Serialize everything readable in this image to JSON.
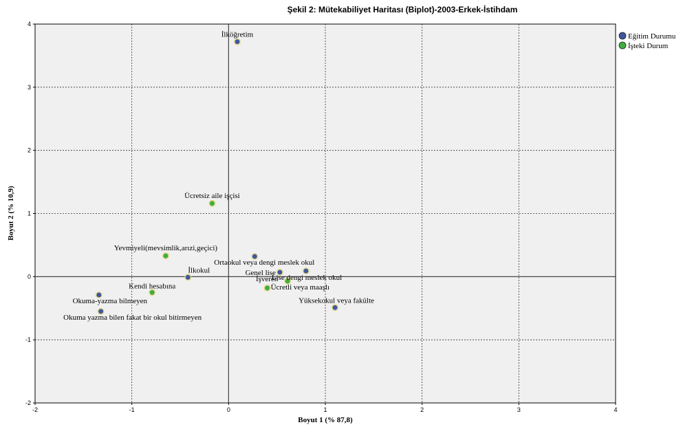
{
  "chart_data": {
    "type": "scatter",
    "title": "Şekil 2: Mütekabiliyet Haritası (Biplot)-2003-Erkek-İstihdam",
    "xlabel": "Boyut 1 (% 87,8)",
    "ylabel": "Boyut 2 (% 10,9)",
    "xlim": [
      -2,
      4
    ],
    "ylim": [
      -2,
      4
    ],
    "xticks": [
      "-2",
      "-1",
      "0",
      "1",
      "2",
      "3",
      "4"
    ],
    "yticks": [
      "-2",
      "-1",
      "0",
      "1",
      "2",
      "3",
      "4"
    ],
    "grid": true,
    "legend_position": "top-right",
    "series": [
      {
        "name": "Eğitim Durumu",
        "color": "#3c58a0",
        "points": [
          {
            "label": "İlköğretim",
            "x": 0.09,
            "y": 3.72
          },
          {
            "label": "Ortaokul veya dengi meslek okul",
            "x": 0.27,
            "y": 0.32
          },
          {
            "label": "Genel lise",
            "x": 0.53,
            "y": 0.07
          },
          {
            "label": "Lise dengi meslek okul",
            "x": 0.8,
            "y": 0.09
          },
          {
            "label": "İlkokul",
            "x": -0.42,
            "y": -0.01
          },
          {
            "label": "Yüksekokul veya fakülte",
            "x": 1.1,
            "y": -0.49
          },
          {
            "label": "Okuma-yazma bilmeyen",
            "x": -1.34,
            "y": -0.29
          },
          {
            "label": "Okuma yazma bilen fakat bir okul bitirmeyen",
            "x": -1.32,
            "y": -0.55
          }
        ]
      },
      {
        "name": "İşteki Durum",
        "color": "#3fae3f",
        "points": [
          {
            "label": "Ücretsiz aile işçisi",
            "x": -0.17,
            "y": 1.16
          },
          {
            "label": "Yevmiyeli(mevsimlik,arızi,geçici)",
            "x": -0.65,
            "y": 0.33
          },
          {
            "label": "Kendi hesabına",
            "x": -0.79,
            "y": -0.25
          },
          {
            "label": "İşveren",
            "x": 0.61,
            "y": -0.07
          },
          {
            "label": "Ücretli veya maaşlı",
            "x": 0.4,
            "y": -0.18
          }
        ]
      }
    ]
  }
}
